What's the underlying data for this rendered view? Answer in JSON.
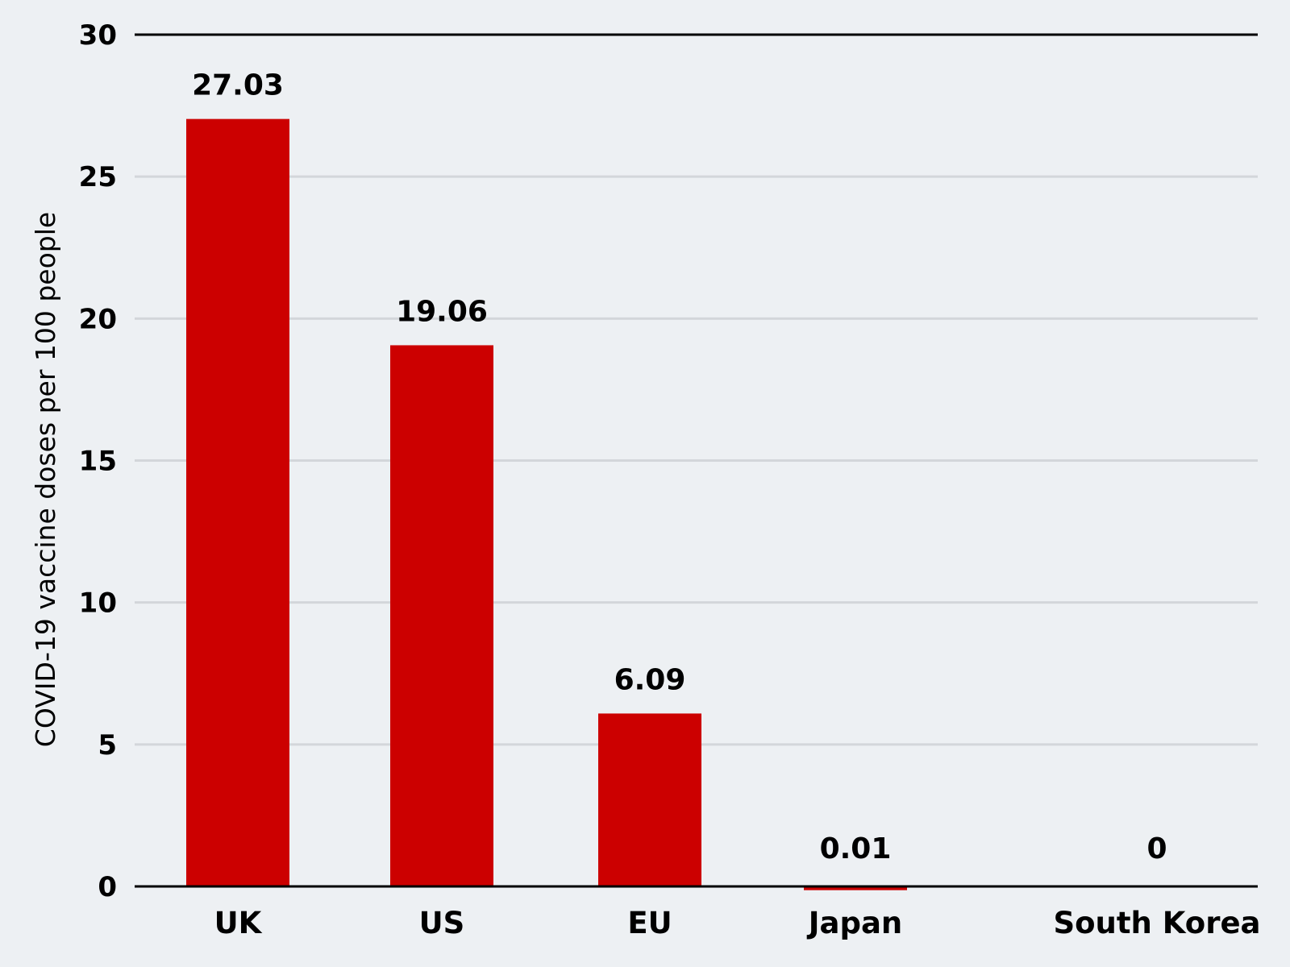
{
  "chart_data": {
    "type": "bar",
    "ylabel": "COVID-19 vaccine doses per 100 people",
    "categories": [
      "UK",
      "US",
      "EU",
      "Japan",
      "South Korea"
    ],
    "values": [
      27.03,
      19.06,
      6.09,
      0.01,
      0
    ],
    "data_labels": [
      "27.03",
      "19.06",
      "6.09",
      "0.01",
      "0"
    ],
    "ylim": [
      0,
      30
    ],
    "yticks": [
      0,
      5,
      10,
      15,
      20,
      25,
      30
    ],
    "ytick_labels": [
      "0",
      "5",
      "10",
      "15",
      "20",
      "25",
      "30"
    ],
    "grid": true,
    "bar_color": "#cc0000"
  }
}
